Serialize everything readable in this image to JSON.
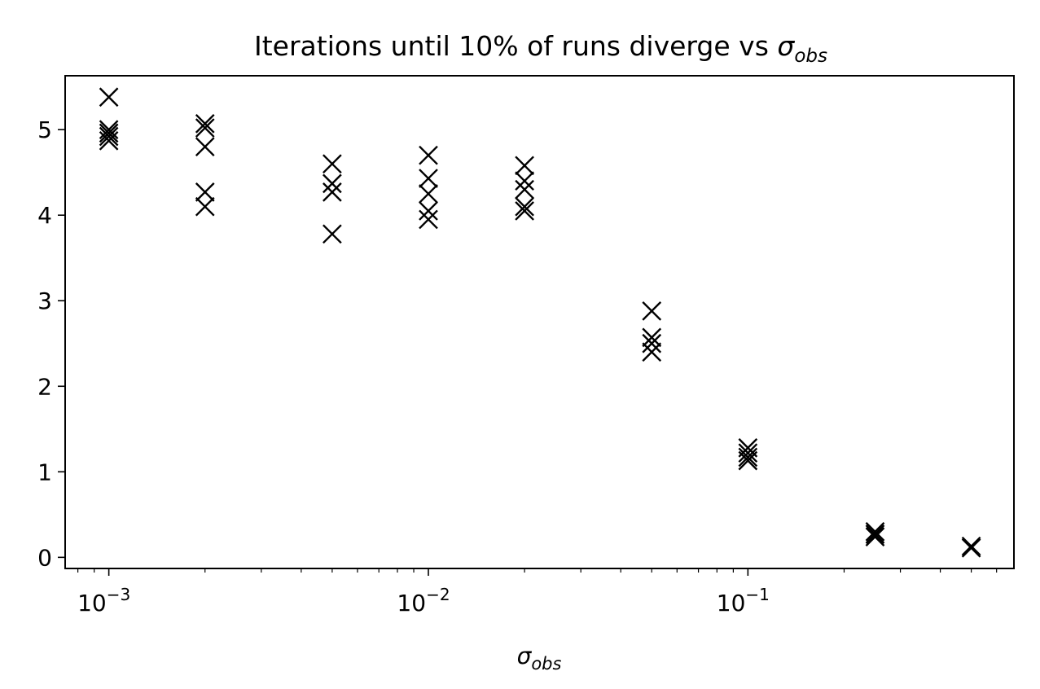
{
  "chart_data": {
    "type": "scatter",
    "title": "Iterations until 10% of runs diverge vs",
    "title_symbol": "σ",
    "title_symbol_sub": "obs",
    "xlabel": "",
    "xlabel_symbol": "σ",
    "xlabel_symbol_sub": "obs",
    "ylabel": "",
    "xscale": "log",
    "xlim": [
      0.00073,
      0.68
    ],
    "ylim": [
      -0.13,
      5.63
    ],
    "x_ticks": [
      {
        "value": 0.001,
        "base": "10",
        "exp": "−3"
      },
      {
        "value": 0.01,
        "base": "10",
        "exp": "−2"
      },
      {
        "value": 0.1,
        "base": "10",
        "exp": "−1"
      }
    ],
    "y_ticks": [
      {
        "value": 0,
        "label": "0"
      },
      {
        "value": 1,
        "label": "1"
      },
      {
        "value": 2,
        "label": "2"
      },
      {
        "value": 3,
        "label": "3"
      },
      {
        "value": 4,
        "label": "4"
      },
      {
        "value": 5,
        "label": "5"
      }
    ],
    "grid": false,
    "marker": "x",
    "marker_color": "#000000",
    "points": [
      {
        "x": 0.001,
        "y": 5.38
      },
      {
        "x": 0.001,
        "y": 5.0
      },
      {
        "x": 0.001,
        "y": 4.96
      },
      {
        "x": 0.001,
        "y": 4.92
      },
      {
        "x": 0.001,
        "y": 4.87
      },
      {
        "x": 0.002,
        "y": 5.07
      },
      {
        "x": 0.002,
        "y": 5.02
      },
      {
        "x": 0.002,
        "y": 4.8
      },
      {
        "x": 0.002,
        "y": 4.27
      },
      {
        "x": 0.002,
        "y": 4.1
      },
      {
        "x": 0.005,
        "y": 4.6
      },
      {
        "x": 0.005,
        "y": 4.37
      },
      {
        "x": 0.005,
        "y": 4.27
      },
      {
        "x": 0.005,
        "y": 3.78
      },
      {
        "x": 0.01,
        "y": 4.7
      },
      {
        "x": 0.01,
        "y": 4.43
      },
      {
        "x": 0.01,
        "y": 4.25
      },
      {
        "x": 0.01,
        "y": 4.05
      },
      {
        "x": 0.01,
        "y": 3.95
      },
      {
        "x": 0.02,
        "y": 4.58
      },
      {
        "x": 0.02,
        "y": 4.4
      },
      {
        "x": 0.02,
        "y": 4.3
      },
      {
        "x": 0.02,
        "y": 4.1
      },
      {
        "x": 0.02,
        "y": 4.05
      },
      {
        "x": 0.05,
        "y": 2.88
      },
      {
        "x": 0.05,
        "y": 2.57
      },
      {
        "x": 0.05,
        "y": 2.5
      },
      {
        "x": 0.05,
        "y": 2.4
      },
      {
        "x": 0.1,
        "y": 1.28
      },
      {
        "x": 0.1,
        "y": 1.22
      },
      {
        "x": 0.1,
        "y": 1.17
      },
      {
        "x": 0.1,
        "y": 1.13
      },
      {
        "x": 0.25,
        "y": 0.3
      },
      {
        "x": 0.25,
        "y": 0.27
      },
      {
        "x": 0.25,
        "y": 0.24
      },
      {
        "x": 0.5,
        "y": 0.13
      },
      {
        "x": 0.5,
        "y": 0.11
      }
    ]
  }
}
